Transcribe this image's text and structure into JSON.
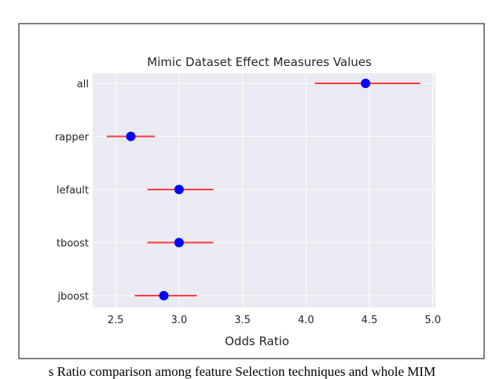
{
  "caption": "s Ratio comparison among feature Selection techniques and whole MIM",
  "chart_data": {
    "type": "scatter",
    "subtype": "forest-plot",
    "title": "Mimic Dataset Effect Measures Values",
    "xlabel": "Odds Ratio",
    "ylabel": "",
    "xlim": [
      2.32,
      5.02
    ],
    "xticks": [
      2.5,
      3.0,
      3.5,
      4.0,
      4.5,
      5.0
    ],
    "xtick_labels": [
      "2.5",
      "3.0",
      "3.5",
      "4.0",
      "4.5",
      "5.0"
    ],
    "grid": true,
    "categories": [
      "all",
      "rapper",
      "lefault",
      "tboost",
      "jboost"
    ],
    "series": [
      {
        "values": [
          4.47,
          2.62,
          3.0,
          3.0,
          2.88
        ],
        "ci_low": [
          4.07,
          2.43,
          2.75,
          2.75,
          2.65
        ],
        "ci_high": [
          4.9,
          2.81,
          3.27,
          3.27,
          3.14
        ]
      }
    ],
    "colors": {
      "background": "#eaeaf2",
      "grid": "#ffffff",
      "marker": "#0000ff",
      "error_bar": "#ff3b3b",
      "text": "#262626"
    }
  }
}
